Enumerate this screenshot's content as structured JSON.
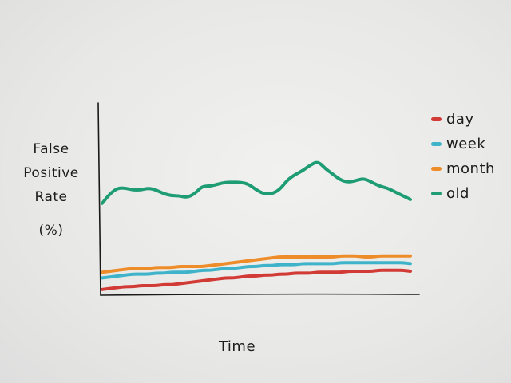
{
  "chart_data": {
    "type": "line",
    "title": "",
    "xlabel": "Time",
    "ylabel_lines": [
      "False",
      "Positive",
      "Rate",
      "(%)"
    ],
    "ylim": [
      0,
      100
    ],
    "grid": false,
    "legend_position": "top-right",
    "x": [
      0,
      1,
      2,
      3,
      4,
      5,
      6,
      7,
      8,
      9,
      10,
      11,
      12,
      13,
      14,
      15,
      16,
      17,
      18,
      19,
      20,
      21,
      22,
      23,
      24,
      25,
      26,
      27,
      28,
      29,
      30,
      31,
      32,
      33,
      34,
      35,
      36,
      37,
      38,
      39,
      40
    ],
    "series": [
      {
        "name": "day",
        "color": "#d23a35",
        "values": [
          3,
          3.5,
          4,
          4.5,
          4.5,
          5,
          5,
          5,
          5.5,
          5.5,
          6,
          6.5,
          7,
          7.5,
          8,
          8.5,
          9,
          9,
          9.5,
          10,
          10,
          10.5,
          10.5,
          11,
          11,
          11.5,
          11.5,
          11.5,
          12,
          12,
          12,
          12,
          12.5,
          12.5,
          12.5,
          12.5,
          13,
          13,
          13,
          13,
          12.5
        ]
      },
      {
        "name": "week",
        "color": "#3fb3c9",
        "values": [
          9,
          9.5,
          10,
          10.5,
          11,
          11,
          11,
          11.5,
          11.5,
          12,
          12,
          12,
          12.5,
          13,
          13,
          13.5,
          14,
          14,
          14.5,
          15,
          15,
          15.5,
          15.5,
          16,
          16,
          16,
          16.5,
          16.5,
          16.5,
          16.5,
          16.5,
          17,
          17,
          17,
          17,
          17,
          17,
          17,
          17,
          17,
          16.5
        ]
      },
      {
        "name": "month",
        "color": "#ee8c2a",
        "values": [
          12,
          12.5,
          13,
          13.5,
          14,
          14,
          14,
          14.5,
          14.5,
          14.5,
          15,
          15,
          15,
          15,
          15.5,
          16,
          16.5,
          17,
          17.5,
          18,
          18.5,
          19,
          19.5,
          20,
          20,
          20,
          20,
          20,
          20,
          20,
          20,
          20.5,
          20.5,
          20.5,
          20,
          20,
          20.5,
          20.5,
          20.5,
          20.5,
          20.5
        ]
      },
      {
        "name": "old",
        "color": "#1e9c73",
        "values": [
          48,
          53,
          56,
          56,
          55,
          55,
          56,
          55,
          53,
          52,
          52,
          51,
          53,
          57,
          57,
          58,
          59,
          59,
          59,
          58,
          55,
          53,
          53,
          55,
          60,
          63,
          65,
          68,
          70,
          66,
          63,
          60,
          59,
          60,
          61,
          59,
          57,
          56,
          54,
          52,
          50
        ]
      }
    ]
  }
}
